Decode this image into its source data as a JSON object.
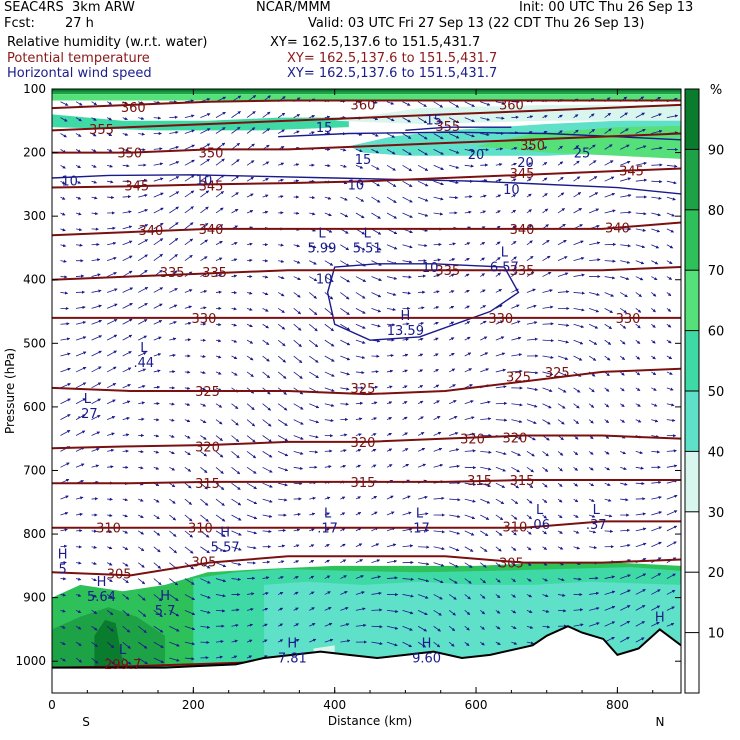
{
  "header": {
    "title": "SEAC4RS  3km ARW",
    "center": "NCAR/MMM",
    "init": "Init: 00 UTC Thu 26 Sep 13",
    "fcst_label": "Fcst:",
    "fcst_value": "27 h",
    "valid": "Valid: 03 UTC Fri 27 Sep 13 (22 CDT Thu 26 Sep 13)",
    "fields": [
      {
        "name": "Relative humidity (w.r.t. water)",
        "xy": "XY= 162.5,137.6 to 151.5,431.7"
      },
      {
        "name": "Potential temperature",
        "xy": "XY= 162.5,137.6 to 151.5,431.7"
      },
      {
        "name": "Horizontal wind speed",
        "xy": "XY= 162.5,137.6 to 151.5,431.7"
      }
    ]
  },
  "colors": {
    "theta": "#7a1010",
    "wind": "#1a1a8c",
    "vectors": "#1a1a8c",
    "terrain": "#000000"
  },
  "chart_data": {
    "type": "heatmap",
    "xlabel": "Distance (km)",
    "ylabel": "Pressure (hPa)",
    "xlim": [
      0,
      890
    ],
    "ylim": [
      1050,
      100
    ],
    "xticks": [
      0,
      200,
      400,
      600,
      800
    ],
    "yticks": [
      100,
      200,
      300,
      400,
      500,
      600,
      700,
      800,
      900,
      1000
    ],
    "endpoint_left": "S",
    "endpoint_right": "N",
    "colorbar": {
      "unit": "%",
      "ticks": [
        10,
        20,
        30,
        40,
        50,
        60,
        70,
        80,
        90
      ],
      "bins": [
        {
          "from": 0,
          "to": 30,
          "color": "#ffffff"
        },
        {
          "from": 30,
          "to": 40,
          "color": "#d9f6ee"
        },
        {
          "from": 40,
          "to": 50,
          "color": "#5fe0c8"
        },
        {
          "from": 50,
          "to": 60,
          "color": "#3fd9a5"
        },
        {
          "from": 60,
          "to": 70,
          "color": "#55e07a"
        },
        {
          "from": 70,
          "to": 80,
          "color": "#2ec15a"
        },
        {
          "from": 80,
          "to": 90,
          "color": "#1ea246"
        },
        {
          "from": 90,
          "to": 100,
          "color": "#0a7c2e"
        }
      ]
    },
    "theta_contours": [
      {
        "value": 300,
        "p": [
          1010,
          1008,
          1004,
          1000,
          1000,
          1000,
          1000,
          1000,
          990
        ]
      },
      {
        "value": 305,
        "p": [
          860,
          865,
          845,
          835,
          835,
          835,
          845,
          845,
          840
        ]
      },
      {
        "value": 310,
        "p": [
          790,
          790,
          790,
          790,
          790,
          790,
          790,
          780,
          780
        ]
      },
      {
        "value": 315,
        "p": [
          720,
          720,
          718,
          718,
          718,
          718,
          715,
          715,
          715
        ]
      },
      {
        "value": 320,
        "p": [
          665,
          662,
          660,
          655,
          655,
          650,
          645,
          645,
          650
        ]
      },
      {
        "value": 325,
        "p": [
          570,
          575,
          575,
          575,
          580,
          575,
          560,
          545,
          540
        ]
      },
      {
        "value": 330,
        "p": [
          460,
          460,
          460,
          460,
          460,
          460,
          460,
          460,
          460
        ]
      },
      {
        "value": 335,
        "p": [
          400,
          395,
          390,
          385,
          385,
          385,
          385,
          385,
          380
        ]
      },
      {
        "value": 340,
        "p": [
          330,
          325,
          320,
          320,
          320,
          320,
          320,
          320,
          310
        ]
      },
      {
        "value": 345,
        "p": [
          255,
          253,
          250,
          248,
          245,
          240,
          235,
          230,
          225
        ]
      },
      {
        "value": 350,
        "p": [
          200,
          200,
          195,
          195,
          190,
          185,
          180,
          175,
          170
        ]
      },
      {
        "value": 355,
        "p": [
          165,
          160,
          155,
          150,
          145,
          140,
          135,
          130,
          125
        ]
      },
      {
        "value": 360,
        "p": [
          130,
          125,
          120,
          118,
          118,
          118,
          118,
          118,
          118
        ]
      }
    ],
    "theta_labels": [
      {
        "text": "360",
        "x": 115,
        "p": 128
      },
      {
        "text": "360",
        "x": 440,
        "p": 124
      },
      {
        "text": "360",
        "x": 650,
        "p": 124
      },
      {
        "text": "355",
        "x": 70,
        "p": 163
      },
      {
        "text": "355",
        "x": 560,
        "p": 158
      },
      {
        "text": "350",
        "x": 110,
        "p": 200
      },
      {
        "text": "350",
        "x": 225,
        "p": 200
      },
      {
        "text": "350",
        "x": 680,
        "p": 188
      },
      {
        "text": "345",
        "x": 120,
        "p": 252
      },
      {
        "text": "345",
        "x": 225,
        "p": 252
      },
      {
        "text": "345",
        "x": 665,
        "p": 232
      },
      {
        "text": "345",
        "x": 820,
        "p": 228
      },
      {
        "text": "340",
        "x": 140,
        "p": 322
      },
      {
        "text": "340",
        "x": 225,
        "p": 320
      },
      {
        "text": "340",
        "x": 665,
        "p": 320
      },
      {
        "text": "340",
        "x": 800,
        "p": 318
      },
      {
        "text": "335",
        "x": 170,
        "p": 388
      },
      {
        "text": "335",
        "x": 230,
        "p": 388
      },
      {
        "text": "335",
        "x": 560,
        "p": 385
      },
      {
        "text": "335",
        "x": 665,
        "p": 385
      },
      {
        "text": "330",
        "x": 215,
        "p": 460
      },
      {
        "text": "330",
        "x": 635,
        "p": 460
      },
      {
        "text": "330",
        "x": 815,
        "p": 460
      },
      {
        "text": "325",
        "x": 220,
        "p": 575
      },
      {
        "text": "325",
        "x": 440,
        "p": 570
      },
      {
        "text": "325",
        "x": 660,
        "p": 552
      },
      {
        "text": "325",
        "x": 715,
        "p": 545
      },
      {
        "text": "320",
        "x": 220,
        "p": 662
      },
      {
        "text": "320",
        "x": 440,
        "p": 655
      },
      {
        "text": "320",
        "x": 595,
        "p": 650
      },
      {
        "text": "320",
        "x": 655,
        "p": 648
      },
      {
        "text": "315",
        "x": 220,
        "p": 720
      },
      {
        "text": "315",
        "x": 440,
        "p": 718
      },
      {
        "text": "315",
        "x": 605,
        "p": 715
      },
      {
        "text": "315",
        "x": 665,
        "p": 715
      },
      {
        "text": "310",
        "x": 80,
        "p": 790
      },
      {
        "text": "310",
        "x": 210,
        "p": 790
      },
      {
        "text": "310",
        "x": 655,
        "p": 788
      },
      {
        "text": "305",
        "x": 95,
        "p": 862
      },
      {
        "text": "305",
        "x": 215,
        "p": 843
      },
      {
        "text": "305",
        "x": 650,
        "p": 845
      }
    ],
    "wind_contours": [
      {
        "value": 10,
        "points": [
          [
            0,
            240
          ],
          [
            80,
            236
          ],
          [
            200,
            235
          ],
          [
            400,
            240
          ],
          [
            600,
            245
          ],
          [
            800,
            255
          ],
          [
            890,
            265
          ]
        ]
      },
      {
        "value": 15,
        "points": [
          [
            320,
            175
          ],
          [
            420,
            170
          ],
          [
            560,
            168
          ],
          [
            700,
            170
          ],
          [
            800,
            175
          ],
          [
            890,
            180
          ]
        ]
      },
      {
        "value": 20,
        "points": [
          [
            500,
            165
          ],
          [
            560,
            160
          ],
          [
            650,
            160
          ]
        ]
      }
    ],
    "wind_labels": [
      {
        "text": "10",
        "x": 25,
        "p": 244
      },
      {
        "text": "10",
        "x": 215,
        "p": 242
      },
      {
        "text": "10",
        "x": 430,
        "p": 250
      },
      {
        "text": "10",
        "x": 650,
        "p": 257
      },
      {
        "text": "10",
        "x": 385,
        "p": 398
      },
      {
        "text": "10",
        "x": 535,
        "p": 380
      },
      {
        "text": "15",
        "x": 385,
        "p": 160
      },
      {
        "text": "15",
        "x": 440,
        "p": 210
      },
      {
        "text": "15",
        "x": 540,
        "p": 148
      },
      {
        "text": "20",
        "x": 600,
        "p": 202
      },
      {
        "text": "20",
        "x": 670,
        "p": 215
      },
      {
        "text": "25",
        "x": 750,
        "p": 200
      }
    ],
    "extrema": [
      {
        "kind": "L",
        "value": "5.99",
        "x": 382,
        "p": 340
      },
      {
        "kind": "L",
        "value": "5.51",
        "x": 446,
        "p": 340
      },
      {
        "kind": "L",
        "value": "6.57",
        "x": 640,
        "p": 370
      },
      {
        "kind": "H",
        "value": "13.59",
        "x": 500,
        "p": 470
      },
      {
        "kind": "L",
        "value": ".44",
        "x": 130,
        "p": 520
      },
      {
        "kind": "L",
        "value": ".27",
        "x": 50,
        "p": 600
      },
      {
        "kind": "L",
        "value": ".17",
        "x": 390,
        "p": 780
      },
      {
        "kind": "L",
        "value": ".17",
        "x": 520,
        "p": 780
      },
      {
        "kind": "L",
        "value": ".06",
        "x": 690,
        "p": 775
      },
      {
        "kind": "L",
        "value": ".37",
        "x": 770,
        "p": 775
      },
      {
        "kind": "H",
        "value": "5.57",
        "x": 245,
        "p": 810
      },
      {
        "kind": "H",
        "value": "5",
        "x": 15,
        "p": 845
      },
      {
        "kind": "H",
        "value": "5.64",
        "x": 70,
        "p": 888
      },
      {
        "kind": "H",
        "value": "5.7",
        "x": 160,
        "p": 910
      },
      {
        "kind": "L",
        "value": "299.7",
        "x": 100,
        "p": 995
      },
      {
        "kind": "H",
        "value": "7.81",
        "x": 340,
        "p": 985
      },
      {
        "kind": "H",
        "value": "9.60",
        "x": 530,
        "p": 985
      },
      {
        "kind": "H",
        "value": "H",
        "x": 860,
        "p": 920
      }
    ],
    "jet_core": {
      "label": "H",
      "value": "13.59"
    },
    "terrain_p": [
      1010,
      1010,
      1010,
      1008,
      1005,
      995,
      990,
      985,
      990,
      995,
      990,
      985,
      995,
      990,
      975,
      960,
      945,
      955,
      965,
      990,
      980,
      950,
      975
    ],
    "terrain_x": [
      0,
      100,
      160,
      200,
      260,
      300,
      340,
      380,
      420,
      460,
      500,
      540,
      580,
      620,
      680,
      700,
      730,
      750,
      780,
      800,
      830,
      860,
      890
    ]
  }
}
